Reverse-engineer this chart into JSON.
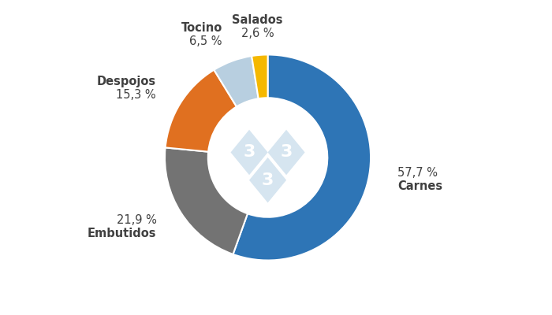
{
  "labels": [
    "Carnes",
    "Embutidos",
    "Despojos",
    "Tocino",
    "Salados"
  ],
  "values": [
    57.7,
    21.9,
    15.3,
    6.5,
    2.6
  ],
  "colors": [
    "#2E75B6",
    "#737373",
    "#E07020",
    "#B8CFE0",
    "#F5B800"
  ],
  "background_color": "#FFFFFF",
  "label_fontsize": 10.5,
  "pct_fontsize": 10.5,
  "wedge_edge_color": "#FFFFFF",
  "wedge_linewidth": 1.5,
  "donut_width": 0.42,
  "startangle": 90,
  "text_color": "#404040",
  "center_logo_color": "#D6E5F0",
  "center_logo_text_color": "#AACCE0"
}
